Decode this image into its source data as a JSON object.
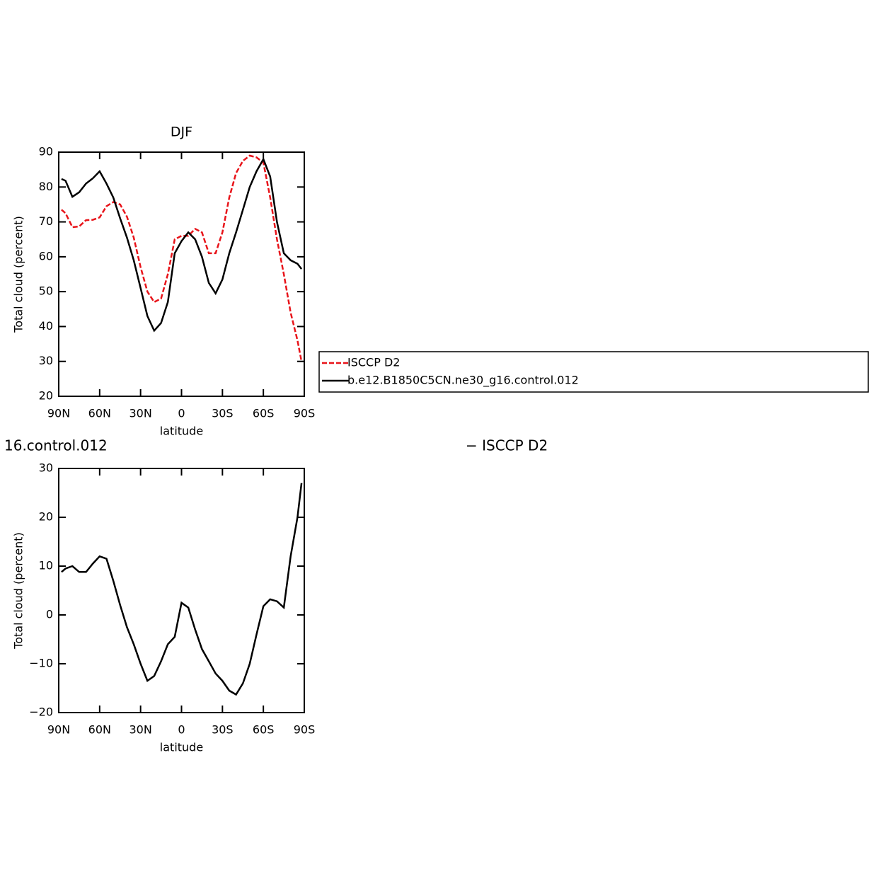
{
  "chart_data": [
    {
      "type": "line",
      "title": "DJF",
      "xlabel": "latitude",
      "ylabel": "Total cloud (percent)",
      "x": [
        88,
        85,
        80,
        75,
        70,
        65,
        60,
        55,
        50,
        45,
        40,
        35,
        30,
        25,
        20,
        15,
        10,
        5,
        0,
        -5,
        -10,
        -15,
        -20,
        -25,
        -30,
        -35,
        -40,
        -45,
        -50,
        -55,
        -60,
        -65,
        -70,
        -75,
        -80,
        -85,
        -88
      ],
      "xlim": [
        90,
        -90
      ],
      "xticks": [
        {
          "value": 90,
          "label": "90N"
        },
        {
          "value": 60,
          "label": "60N"
        },
        {
          "value": 30,
          "label": "30N"
        },
        0,
        {
          "value": -30,
          "label": "30S"
        },
        {
          "value": -60,
          "label": "60S"
        },
        {
          "value": -90,
          "label": "90S"
        }
      ],
      "ylim": [
        20,
        90
      ],
      "yticks": [
        20,
        30,
        40,
        50,
        60,
        70,
        80,
        90
      ],
      "series": [
        {
          "name": "ISCCP D2",
          "color": "#e8141a",
          "dash": true,
          "values": [
            73.5,
            72.5,
            68.5,
            68.7,
            70.5,
            70.6,
            71.3,
            74.5,
            75.7,
            75,
            71.5,
            65.5,
            57,
            50,
            47,
            48,
            55,
            65,
            66,
            66,
            68,
            67,
            61,
            61,
            67,
            77,
            84,
            87.5,
            89,
            88.5,
            87,
            77,
            65,
            55,
            44,
            36,
            30
          ]
        },
        {
          "name": "b.e12.B1850C5CN.ne30_g16.control.012",
          "color": "#000000",
          "dash": false,
          "values": [
            82.3,
            81.8,
            77.2,
            78.5,
            81,
            82.5,
            84.5,
            81,
            77,
            71,
            65.5,
            59,
            51,
            43,
            38.8,
            41,
            47,
            61,
            64.5,
            67,
            65,
            60,
            52.5,
            49.5,
            53.5,
            61,
            67,
            73.5,
            80,
            84.5,
            88,
            83,
            70,
            61,
            59,
            58,
            56.5
          ]
        }
      ]
    },
    {
      "type": "line",
      "title": [
        "16.control.012",
        "− ISCCP D2"
      ],
      "xlabel": "latitude",
      "ylabel": "Total cloud (percent)",
      "x": [
        88,
        85,
        80,
        75,
        70,
        65,
        60,
        55,
        50,
        45,
        40,
        35,
        30,
        25,
        20,
        15,
        10,
        5,
        0,
        -5,
        -10,
        -15,
        -20,
        -25,
        -30,
        -35,
        -40,
        -45,
        -50,
        -55,
        -60,
        -65,
        -70,
        -75,
        -80,
        -85,
        -88
      ],
      "xlim": [
        90,
        -90
      ],
      "xticks": [
        {
          "value": 90,
          "label": "90N"
        },
        {
          "value": 60,
          "label": "60N"
        },
        {
          "value": 30,
          "label": "30N"
        },
        0,
        {
          "value": -30,
          "label": "30S"
        },
        {
          "value": -60,
          "label": "60S"
        },
        {
          "value": -90,
          "label": "90S"
        }
      ],
      "ylim": [
        -20,
        30
      ],
      "yticks": [
        {
          "value": -20,
          "label": "−20"
        },
        {
          "value": -10,
          "label": "−10"
        },
        0,
        10,
        20,
        30
      ],
      "series": [
        {
          "color": "#000000",
          "dash": false,
          "values": [
            8.8,
            9.5,
            10,
            8.8,
            8.8,
            10.5,
            12,
            11.5,
            7,
            2,
            -2.5,
            -6,
            -10,
            -13.5,
            -12.5,
            -9.5,
            -6,
            -4.5,
            2.5,
            1.5,
            -3,
            -7,
            -9.5,
            -12,
            -13.5,
            -15.5,
            -16.3,
            -14,
            -10,
            -4,
            1.8,
            3.2,
            2.8,
            1.5,
            12,
            20,
            27
          ]
        }
      ]
    }
  ]
}
